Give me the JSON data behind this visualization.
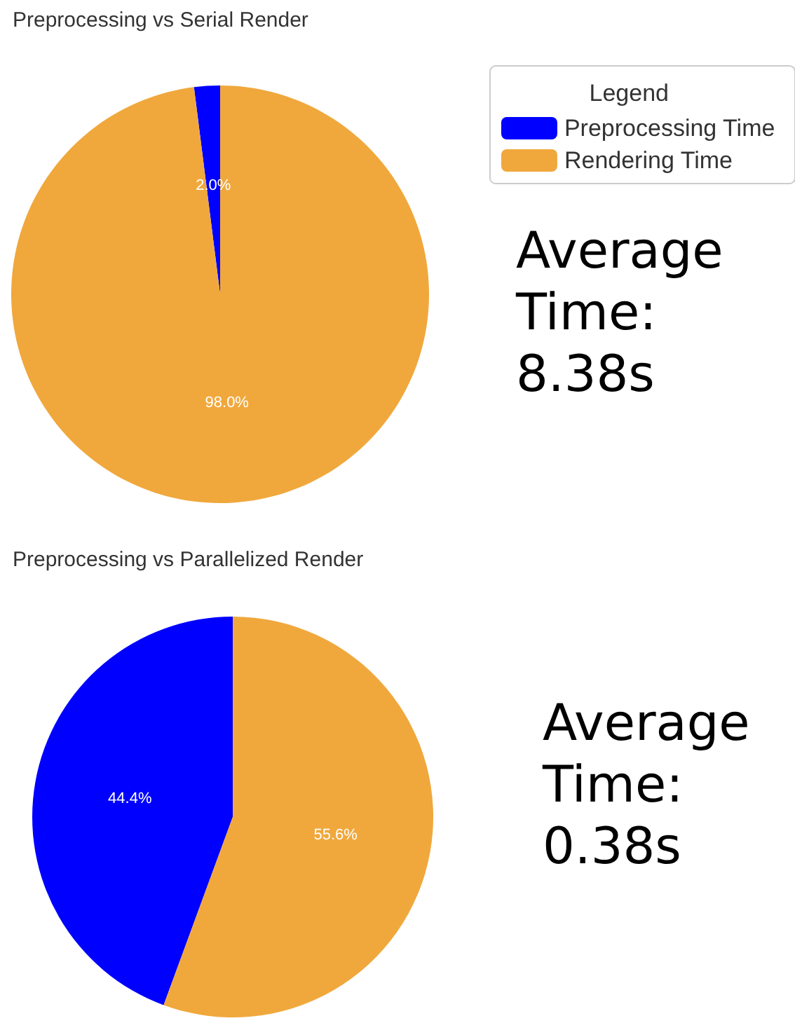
{
  "chart_data": [
    {
      "type": "pie",
      "title": "Preprocessing vs Serial Render",
      "categories": [
        "Preprocessing Time",
        "Rendering Time"
      ],
      "values": [
        2.0,
        98.0
      ],
      "colors": [
        "#0000ff",
        "#f0a83c"
      ],
      "value_labels": [
        "2.0%",
        "98.0%"
      ],
      "legend": "top right",
      "legend_title": "Legend",
      "annotations": [
        "Average Time: 8.38s"
      ]
    },
    {
      "type": "pie",
      "title": "Preprocessing vs Parallelized Render",
      "categories": [
        null,
        null
      ],
      "values": [
        44.4,
        55.6
      ],
      "colors": [
        "#0000ff",
        "#f0a83c"
      ],
      "value_labels": [
        "44.4%",
        "55.6%"
      ],
      "annotations": [
        "Average Time: 0.38s"
      ]
    }
  ]
}
